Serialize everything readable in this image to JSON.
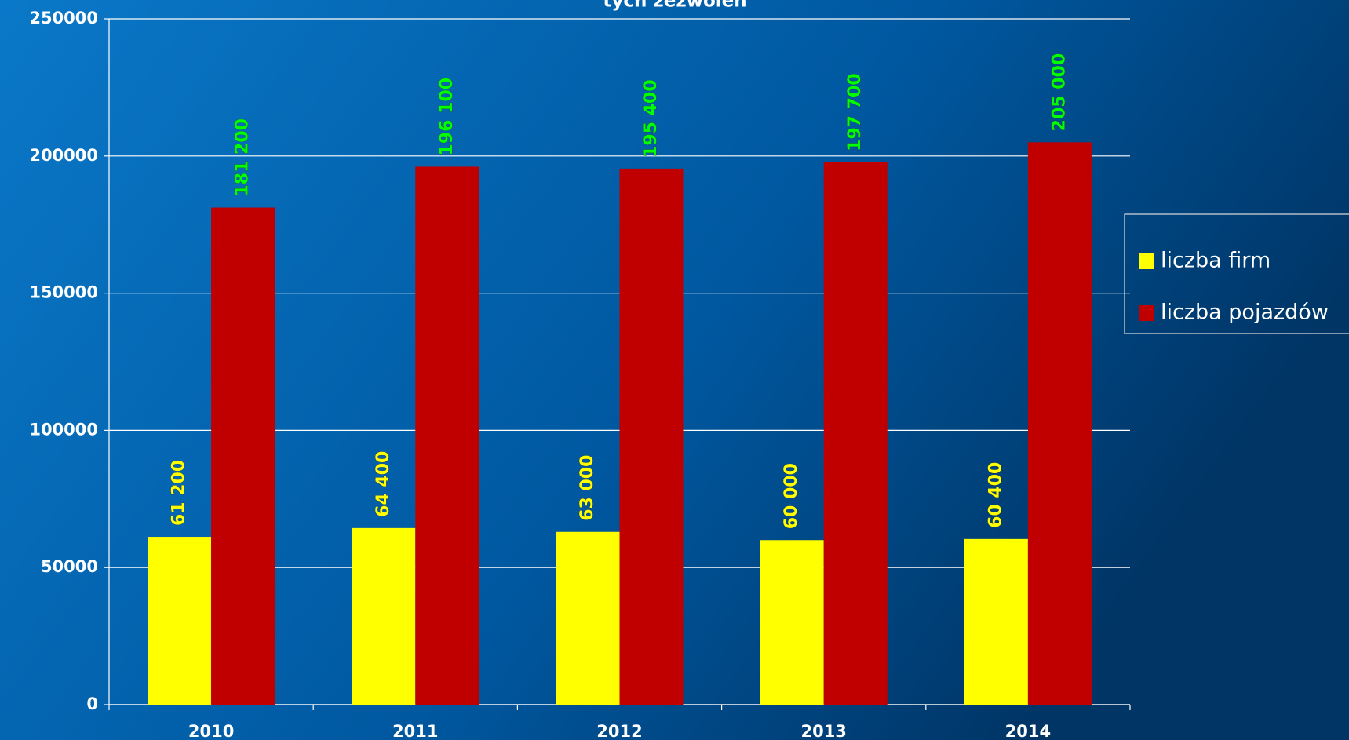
{
  "chart_data": {
    "type": "bar",
    "title": "tych zezwoleń",
    "categories": [
      "2010",
      "2011",
      "2012",
      "2013",
      "2014"
    ],
    "series": [
      {
        "name": "liczba firm",
        "color": "#ffff00",
        "label_color": "#ffff00",
        "values": [
          61200,
          64400,
          63000,
          60000,
          60400
        ],
        "value_labels": [
          "61 200",
          "64 400",
          "63 000",
          "60 000",
          "60 400"
        ]
      },
      {
        "name": "liczba pojazdów",
        "color": "#c00000",
        "label_color": "#00ff00",
        "values": [
          181200,
          196100,
          195400,
          197700,
          205000
        ],
        "value_labels": [
          "181 200",
          "196 100",
          "195 400",
          "197 700",
          "205 000"
        ]
      }
    ],
    "ylim": [
      0,
      250000
    ],
    "yticks": [
      0,
      50000,
      100000,
      150000,
      200000,
      250000
    ],
    "grid": true,
    "legend": "right"
  }
}
